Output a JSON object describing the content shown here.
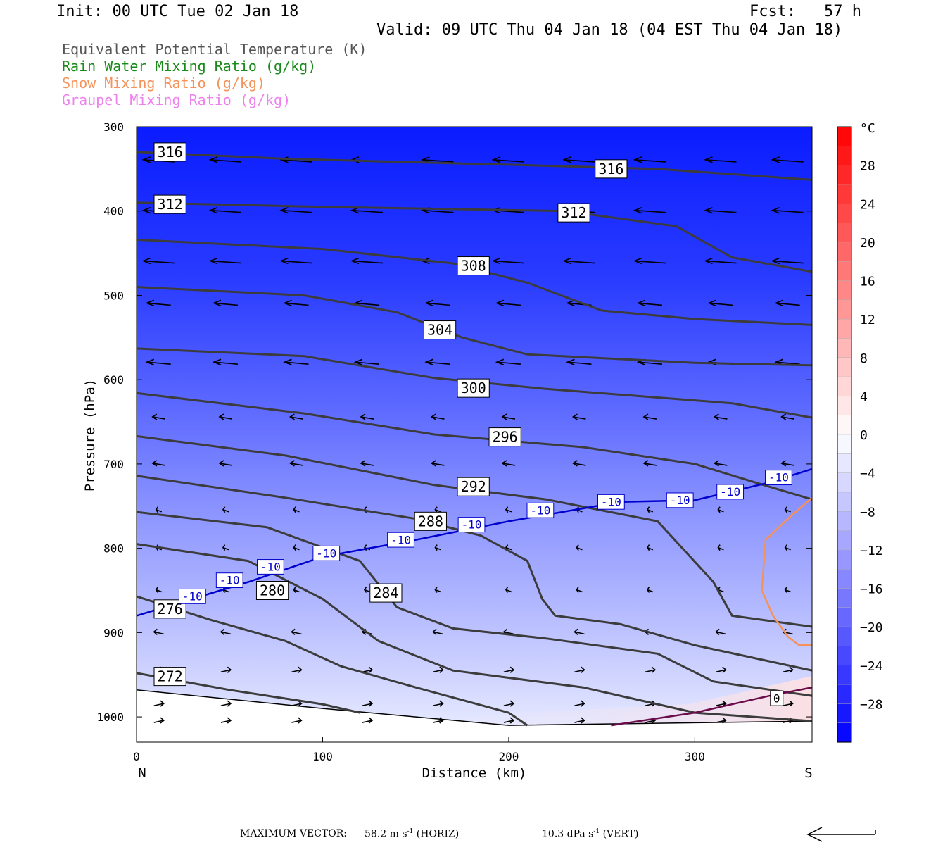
{
  "header": {
    "init": "Init: 00 UTC Tue 02 Jan 18",
    "fcst": "Fcst:   57 h",
    "valid": "Valid: 09 UTC Thu 04 Jan 18 (04 EST Thu 04 Jan 18)"
  },
  "legend": [
    {
      "label": "Equivalent Potential Temperature (K)",
      "color": "#555555"
    },
    {
      "label": "Rain Water Mixing Ratio (g/kg)",
      "color": "#1a8a1a"
    },
    {
      "label": "Snow Mixing Ratio (g/kg)",
      "color": "#f4925a"
    },
    {
      "label": "Graupel Mixing Ratio (g/kg)",
      "color": "#ee82ee"
    }
  ],
  "footer": {
    "max_vector_label": "MAXIMUM VECTOR:",
    "horiz_value": "58.2 m s",
    "horiz_unit": " (HORIZ)",
    "vert_value": "10.3 dPa s",
    "vert_unit": " (VERT)",
    "exponent": "-1"
  },
  "chart_data": {
    "type": "cross-section contour",
    "xlabel": "Distance (km)",
    "ylabel": "Pressure (hPa)",
    "xlim": [
      0,
      363
    ],
    "ylim": [
      1030,
      300
    ],
    "x_ticks": [
      0,
      100,
      200,
      300
    ],
    "y_ticks": [
      300,
      400,
      500,
      600,
      700,
      800,
      900,
      1000
    ],
    "x_end_labels": {
      "left": "N",
      "right": "S"
    },
    "colorbar": {
      "unit": "°C",
      "ticks": [
        28,
        24,
        20,
        16,
        12,
        8,
        4,
        0,
        -4,
        -8,
        -12,
        -16,
        -20,
        -24,
        -28
      ],
      "range": [
        -32,
        32
      ]
    },
    "theta_e_contours": [
      {
        "label": "316",
        "points": [
          [
            0,
            330
          ],
          [
            80,
            338
          ],
          [
            200,
            345
          ],
          [
            280,
            350
          ],
          [
            363,
            363
          ]
        ]
      },
      {
        "label": "312",
        "points": [
          [
            0,
            390
          ],
          [
            100,
            395
          ],
          [
            230,
            400
          ],
          [
            290,
            418
          ],
          [
            320,
            455
          ],
          [
            363,
            472
          ]
        ]
      },
      {
        "label": "308",
        "points": [
          [
            0,
            434
          ],
          [
            100,
            445
          ],
          [
            170,
            462
          ],
          [
            210,
            485
          ],
          [
            250,
            518
          ],
          [
            300,
            528
          ],
          [
            363,
            535
          ]
        ]
      },
      {
        "label": "304",
        "points": [
          [
            0,
            490
          ],
          [
            90,
            500
          ],
          [
            140,
            520
          ],
          [
            175,
            550
          ],
          [
            210,
            570
          ],
          [
            300,
            580
          ],
          [
            363,
            583
          ]
        ]
      },
      {
        "label": "300",
        "points": [
          [
            0,
            563
          ],
          [
            90,
            572
          ],
          [
            160,
            598
          ],
          [
            220,
            611
          ],
          [
            320,
            628
          ],
          [
            363,
            645
          ]
        ]
      },
      {
        "label": "296",
        "points": [
          [
            0,
            616
          ],
          [
            90,
            640
          ],
          [
            160,
            665
          ],
          [
            240,
            680
          ],
          [
            300,
            700
          ],
          [
            340,
            727
          ],
          [
            363,
            742
          ]
        ]
      },
      {
        "label": "292",
        "points": [
          [
            0,
            667
          ],
          [
            80,
            690
          ],
          [
            160,
            725
          ],
          [
            220,
            742
          ],
          [
            280,
            768
          ],
          [
            310,
            840
          ],
          [
            320,
            880
          ],
          [
            363,
            893
          ]
        ]
      },
      {
        "label": "288",
        "points": [
          [
            0,
            714
          ],
          [
            80,
            740
          ],
          [
            150,
            765
          ],
          [
            185,
            785
          ],
          [
            210,
            815
          ],
          [
            218,
            860
          ],
          [
            225,
            880
          ],
          [
            260,
            890
          ],
          [
            300,
            915
          ],
          [
            363,
            945
          ]
        ]
      },
      {
        "label": "284",
        "points": [
          [
            0,
            757
          ],
          [
            70,
            775
          ],
          [
            120,
            815
          ],
          [
            140,
            870
          ],
          [
            170,
            895
          ],
          [
            220,
            907
          ],
          [
            280,
            925
          ],
          [
            310,
            958
          ],
          [
            363,
            975
          ]
        ]
      },
      {
        "label": "280",
        "points": [
          [
            0,
            795
          ],
          [
            60,
            815
          ],
          [
            100,
            860
          ],
          [
            130,
            910
          ],
          [
            170,
            945
          ],
          [
            240,
            965
          ],
          [
            280,
            985
          ],
          [
            300,
            995
          ],
          [
            363,
            1005
          ]
        ]
      },
      {
        "label": "276",
        "points": [
          [
            0,
            857
          ],
          [
            40,
            885
          ],
          [
            80,
            910
          ],
          [
            110,
            940
          ],
          [
            150,
            965
          ],
          [
            200,
            995
          ],
          [
            210,
            1010
          ]
        ]
      },
      {
        "label": "272",
        "points": [
          [
            0,
            948
          ],
          [
            50,
            968
          ],
          [
            100,
            985
          ],
          [
            120,
            995
          ]
        ]
      }
    ],
    "temperature_contours": [
      {
        "label": "-10",
        "color": "#0000cc",
        "points": [
          [
            0,
            880
          ],
          [
            60,
            840
          ],
          [
            100,
            810
          ],
          [
            150,
            790
          ],
          [
            200,
            768
          ],
          [
            260,
            745
          ],
          [
            300,
            743
          ],
          [
            340,
            722
          ],
          [
            363,
            706
          ]
        ]
      },
      {
        "label": "0",
        "color": "#6a0b4a",
        "points": [
          [
            255,
            1010
          ],
          [
            300,
            995
          ],
          [
            340,
            975
          ],
          [
            363,
            965
          ]
        ]
      }
    ],
    "snow_contour": {
      "color": "#f4925a",
      "points": [
        [
          363,
          740
        ],
        [
          350,
          765
        ],
        [
          338,
          790
        ],
        [
          336,
          850
        ],
        [
          342,
          880
        ],
        [
          350,
          905
        ],
        [
          356,
          915
        ],
        [
          363,
          915
        ]
      ]
    },
    "wind_vector_grid": {
      "x": [
        12,
        48,
        86,
        124,
        162,
        200,
        238,
        276,
        314,
        350
      ],
      "p": [
        340,
        400,
        460,
        510,
        580,
        645,
        700,
        755,
        800,
        850,
        900,
        945,
        985,
        1005
      ]
    }
  },
  "colors": {
    "background_upper": "#0a1cff",
    "background_lower": "#e6e9ff",
    "theta_e_line": "#3c3c3c",
    "colorbar_cold": "#0000ff",
    "colorbar_warm": "#ff0000"
  }
}
